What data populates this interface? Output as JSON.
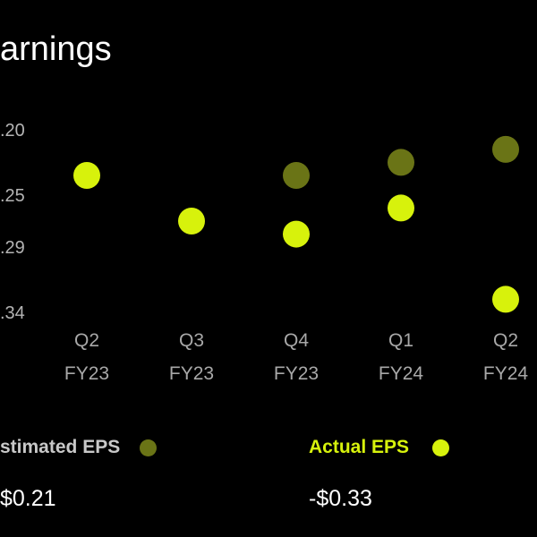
{
  "chart_title": "arnings",
  "chart_data": {
    "type": "scatter",
    "categories": [
      [
        "Q2",
        "FY23"
      ],
      [
        "Q3",
        "FY23"
      ],
      [
        "Q4",
        "FY23"
      ],
      [
        "Q1",
        "FY24"
      ],
      [
        "Q2",
        "FY24"
      ]
    ],
    "y_tick_labels": [
      ".20",
      ".25",
      ".29",
      ".34"
    ],
    "y_tick_values": [
      -0.2,
      -0.25,
      -0.29,
      -0.34
    ],
    "ylim": [
      -0.36,
      -0.18
    ],
    "series": [
      {
        "name": "stimated EPS",
        "color": "#6a7416",
        "values": [
          null,
          null,
          -0.235,
          -0.225,
          -0.215
        ]
      },
      {
        "name": "Actual EPS",
        "color": "#d7f20c",
        "values": [
          -0.235,
          -0.27,
          -0.28,
          -0.26,
          -0.33
        ]
      }
    ]
  },
  "legend": {
    "estimated_label": "stimated EPS",
    "actual_label": "Actual EPS"
  },
  "summary": {
    "estimated_value": "$0.21",
    "actual_value": "-$0.33"
  }
}
